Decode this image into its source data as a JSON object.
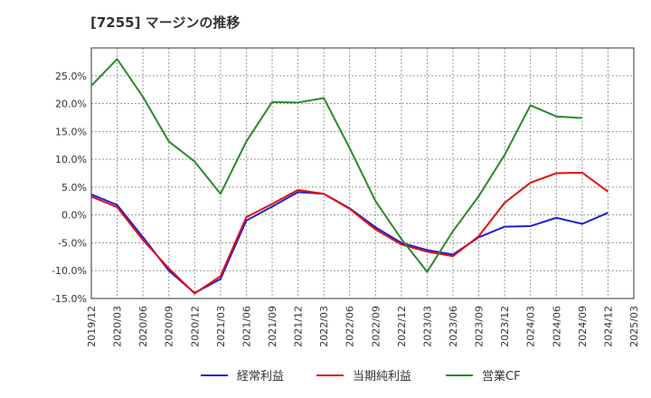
{
  "chart_data": {
    "type": "line",
    "title": "[7255]  マージンの推移",
    "xlabel": "",
    "ylabel": "",
    "ylim": [
      -15,
      30
    ],
    "yticks": [
      -15,
      -10,
      -5,
      0,
      5,
      10,
      15,
      20,
      25
    ],
    "ytick_labels": [
      "-15.0%",
      "-10.0%",
      "-5.0%",
      "0.0%",
      "5.0%",
      "10.0%",
      "15.0%",
      "20.0%",
      "25.0%"
    ],
    "grid": true,
    "legend_position": "bottom",
    "x_labels": [
      "2019/12",
      "2020/03",
      "2020/06",
      "2020/09",
      "2020/12",
      "2021/03",
      "2021/06",
      "2021/09",
      "2021/12",
      "2022/03",
      "2022/06",
      "2022/09",
      "2022/12",
      "2023/03",
      "2023/06",
      "2023/09",
      "2023/12",
      "2024/03",
      "2024/06",
      "2024/09",
      "2024/12",
      "2025/03"
    ],
    "series": [
      {
        "name": "経常利益",
        "color": "#1f1fd6",
        "values": [
          3.7,
          1.8,
          -4.0,
          -10.0,
          -14.0,
          -11.5,
          -1.0,
          1.5,
          4.1,
          3.8,
          1.2,
          -2.2,
          -5.0,
          -6.3,
          -7.1,
          -4.0,
          -2.1,
          -2.0,
          -0.5,
          -1.6,
          0.4,
          null
        ]
      },
      {
        "name": "当期純利益",
        "color": "#e01010",
        "values": [
          3.3,
          1.4,
          -4.5,
          -9.6,
          -14.1,
          -11.0,
          -0.4,
          2.0,
          4.5,
          3.8,
          1.1,
          -2.6,
          -5.3,
          -6.6,
          -7.4,
          -3.8,
          2.2,
          5.8,
          7.5,
          7.6,
          4.2,
          null
        ]
      },
      {
        "name": "営業CF",
        "color": "#2a8a2a",
        "values": [
          23.2,
          28.0,
          21.2,
          13.2,
          9.6,
          3.8,
          13.2,
          20.3,
          20.2,
          21.0,
          12.0,
          2.5,
          -4.3,
          -10.2,
          -2.9,
          3.4,
          10.8,
          19.7,
          17.7,
          17.4,
          null,
          null
        ]
      }
    ]
  }
}
